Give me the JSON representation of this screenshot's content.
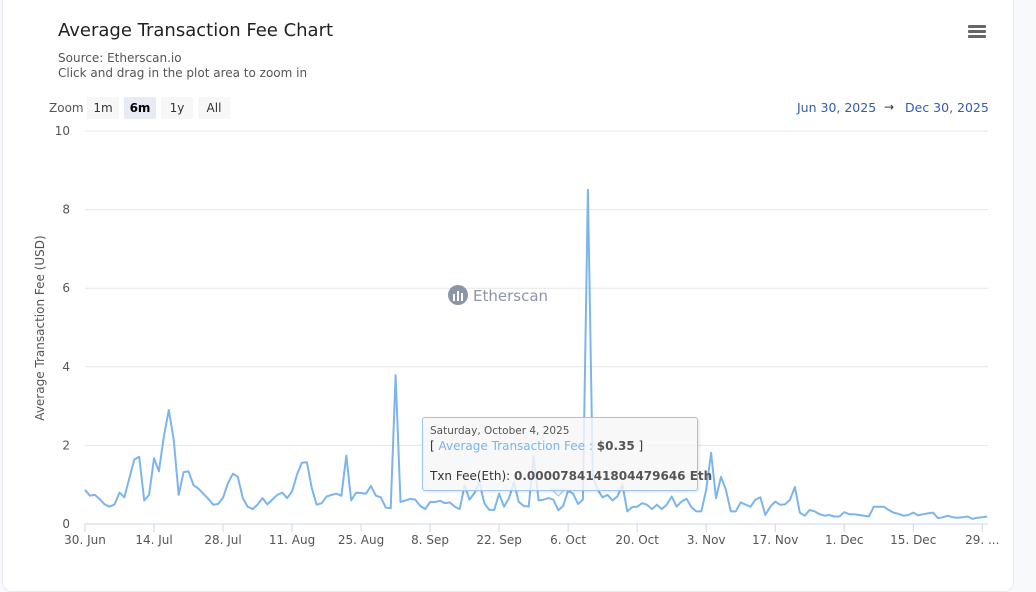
{
  "header": {
    "title": "Average Transaction Fee Chart",
    "source": "Source: Etherscan.io",
    "hint": "Click and drag in the plot area to zoom in",
    "menu_icon": "hamburger-menu-icon"
  },
  "zoom": {
    "label": "Zoom",
    "buttons": [
      {
        "label": "1m",
        "selected": false
      },
      {
        "label": "6m",
        "selected": true
      },
      {
        "label": "1y",
        "selected": false
      },
      {
        "label": "All",
        "selected": false
      }
    ]
  },
  "range": {
    "from": "Jun 30, 2025",
    "arrow": "→",
    "to": "Dec 30, 2025"
  },
  "watermark": "Etherscan",
  "tooltip": {
    "date": "Saturday, October 4, 2025",
    "open": "[ ",
    "series": "Average Transaction Fee",
    "sep": " : ",
    "value": "$0.35",
    "close": " ]",
    "eth_label": "Txn Fee(Eth): ",
    "eth_value": "0.0000784141804479646 Eth",
    "day_index": 96
  },
  "colors": {
    "line": "#7cb5ec",
    "grid": "#e6e6e6",
    "axis": "#ccd6eb"
  },
  "chart_data": {
    "type": "line",
    "title": "Average Transaction Fee Chart",
    "xlabel": "",
    "ylabel": "Average Transaction Fee (USD)",
    "ylim": [
      0,
      10
    ],
    "yticks": [
      "0",
      "2",
      "4",
      "6",
      "8",
      "10"
    ],
    "x_start": "2025-06-30",
    "x_step": "1 day",
    "xticks": [
      {
        "label": "30. Jun",
        "day": 0
      },
      {
        "label": "14. Jul",
        "day": 14
      },
      {
        "label": "28. Jul",
        "day": 28
      },
      {
        "label": "11. Aug",
        "day": 42
      },
      {
        "label": "25. Aug",
        "day": 56
      },
      {
        "label": "8. Sep",
        "day": 70
      },
      {
        "label": "22. Sep",
        "day": 84
      },
      {
        "label": "6. Oct",
        "day": 98
      },
      {
        "label": "20. Oct",
        "day": 112
      },
      {
        "label": "3. Nov",
        "day": 126
      },
      {
        "label": "17. Nov",
        "day": 140
      },
      {
        "label": "1. Dec",
        "day": 154
      },
      {
        "label": "15. Dec",
        "day": 168
      },
      {
        "label": "29. ...",
        "day": 182
      }
    ],
    "series": [
      {
        "name": "Average Transaction Fee",
        "values": [
          0.87,
          0.72,
          0.74,
          0.63,
          0.5,
          0.44,
          0.5,
          0.8,
          0.68,
          1.17,
          1.64,
          1.71,
          0.6,
          0.74,
          1.67,
          1.34,
          2.24,
          2.9,
          2.15,
          0.74,
          1.32,
          1.34,
          0.99,
          0.9,
          0.77,
          0.64,
          0.49,
          0.51,
          0.67,
          1.04,
          1.28,
          1.2,
          0.66,
          0.44,
          0.38,
          0.49,
          0.66,
          0.5,
          0.62,
          0.74,
          0.8,
          0.66,
          0.83,
          1.26,
          1.56,
          1.57,
          0.91,
          0.49,
          0.53,
          0.7,
          0.74,
          0.77,
          0.72,
          1.74,
          0.6,
          0.8,
          0.79,
          0.77,
          0.97,
          0.72,
          0.68,
          0.42,
          0.4,
          3.79,
          0.56,
          0.6,
          0.64,
          0.62,
          0.46,
          0.38,
          0.56,
          0.56,
          0.59,
          0.53,
          0.55,
          0.44,
          0.38,
          0.98,
          0.62,
          0.79,
          1.06,
          0.53,
          0.36,
          0.36,
          0.77,
          0.44,
          0.66,
          1.06,
          0.56,
          0.46,
          0.44,
          1.74,
          0.6,
          0.62,
          0.66,
          0.62,
          0.35,
          0.46,
          0.85,
          0.77,
          0.51,
          0.62,
          8.5,
          1.2,
          0.87,
          0.68,
          0.74,
          0.6,
          0.7,
          1.0,
          0.32,
          0.43,
          0.44,
          0.53,
          0.49,
          0.38,
          0.49,
          0.38,
          0.49,
          0.7,
          0.44,
          0.57,
          0.64,
          0.43,
          0.32,
          0.32,
          0.87,
          1.81,
          0.66,
          1.2,
          0.87,
          0.32,
          0.32,
          0.55,
          0.49,
          0.44,
          0.62,
          0.68,
          0.23,
          0.44,
          0.57,
          0.49,
          0.5,
          0.62,
          0.94,
          0.29,
          0.21,
          0.36,
          0.32,
          0.25,
          0.21,
          0.23,
          0.19,
          0.19,
          0.3,
          0.25,
          0.25,
          0.23,
          0.21,
          0.19,
          0.44,
          0.44,
          0.44,
          0.36,
          0.29,
          0.26,
          0.21,
          0.23,
          0.29,
          0.22,
          0.25,
          0.27,
          0.29,
          0.15,
          0.17,
          0.21,
          0.17,
          0.16,
          0.17,
          0.19,
          0.13,
          0.16,
          0.17,
          0.19
        ]
      }
    ],
    "grid": true,
    "legend": "none"
  }
}
